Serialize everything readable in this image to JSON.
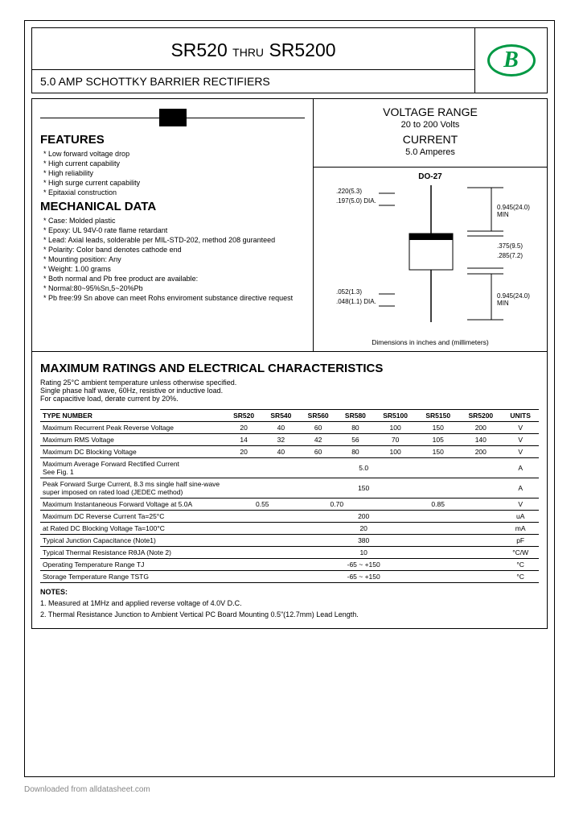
{
  "header": {
    "part_from": "SR520",
    "thru": "THRU",
    "part_to": "SR5200",
    "subtitle": "5.0 AMP SCHOTTKY BARRIER RECTIFIERS",
    "logo_letter": "B"
  },
  "voltage_current": {
    "vr_label": "VOLTAGE RANGE",
    "vr_value": "20 to 200 Volts",
    "cur_label": "CURRENT",
    "cur_value": "5.0 Amperes"
  },
  "features": {
    "heading": "FEATURES",
    "items": [
      "Low forward voltage drop",
      "High current capability",
      "High reliability",
      "High surge current capability",
      "Epitaxial construction"
    ]
  },
  "mechanical": {
    "heading": "MECHANICAL DATA",
    "items": [
      "Case: Molded plastic",
      "Epoxy: UL 94V-0 rate flame retardant",
      "Lead: Axial leads, solderable per MIL-STD-202, method 208 guranteed",
      "Polarity: Color band denotes cathode end",
      "Mounting position: Any",
      "Weight: 1.00 grams",
      "Both normal and Pb free product are available:",
      "Normal:80~95%Sn,5~20%Pb",
      "Pb free:99 Sn above can meet Rohs enviroment substance directive request"
    ]
  },
  "package": {
    "name": "DO-27",
    "dims": {
      "d1": ".220(5.3)",
      "d2": ".197(5.0) DIA.",
      "l1": "0.945(24.0) MIN",
      "b1": ".375(9.5)",
      "b2": ".285(7.2)",
      "w1": ".052(1.3)",
      "w2": ".048(1.1) DIA.",
      "l2": "0.945(24.0) MIN"
    },
    "caption": "Dimensions in inches and (millimeters)"
  },
  "ratings": {
    "heading": "MAXIMUM RATINGS AND ELECTRICAL CHARACTERISTICS",
    "note": "Rating 25°C ambient temperature unless otherwise specified.\nSingle phase half wave, 60Hz, resistive or inductive load.\nFor capacitive load, derate current by 20%.",
    "header_row": [
      "TYPE NUMBER",
      "SR520",
      "SR540",
      "SR560",
      "SR580",
      "SR5100",
      "SR5150",
      "SR5200",
      "UNITS"
    ],
    "rows": [
      {
        "label": "Maximum Recurrent Peak Reverse Voltage",
        "cells": [
          "20",
          "40",
          "60",
          "80",
          "100",
          "150",
          "200"
        ],
        "unit": "V"
      },
      {
        "label": "Maximum RMS Voltage",
        "cells": [
          "14",
          "32",
          "42",
          "56",
          "70",
          "105",
          "140"
        ],
        "unit": "V"
      },
      {
        "label": "Maximum DC Blocking Voltage",
        "cells": [
          "20",
          "40",
          "60",
          "80",
          "100",
          "150",
          "200"
        ],
        "unit": "V"
      },
      {
        "label": "Maximum Average Forward Rectified Current\nSee Fig. 1",
        "span": "5.0",
        "unit": "A"
      },
      {
        "label": "Peak Forward Surge Current, 8.3 ms single half sine-wave super imposed on rated load (JEDEC method)",
        "span": "150",
        "unit": "A"
      },
      {
        "label": "Maximum Instantaneous Forward Voltage at 5.0A",
        "groups": [
          {
            "span": 2,
            "val": "0.55"
          },
          {
            "span": 2,
            "val": "0.70"
          },
          {
            "span": 3,
            "val": "0.85"
          }
        ],
        "unit": "V"
      },
      {
        "label": "Maximum DC Reverse Current        Ta=25°C",
        "span": "200",
        "unit": "uA"
      },
      {
        "label": "at Rated DC Blocking Voltage        Ta=100°C",
        "span": "20",
        "unit": "mA"
      },
      {
        "label": "Typical Junction Capacitance (Note1)",
        "span": "380",
        "unit": "pF"
      },
      {
        "label": "Typical Thermal Resistance RθJA (Note 2)",
        "span": "10",
        "unit": "°C/W"
      },
      {
        "label": "Operating Temperature Range TJ",
        "span": "-65 ~ +150",
        "unit": "°C"
      },
      {
        "label": "Storage Temperature Range TSTG",
        "span": "-65 ~ +150",
        "unit": "°C"
      }
    ]
  },
  "notes": {
    "heading": "NOTES:",
    "items": [
      "1. Measured at 1MHz and applied reverse voltage of 4.0V D.C.",
      "2. Thermal Resistance Junction to Ambient Vertical PC Board Mounting 0.5\"(12.7mm) Lead Length."
    ]
  },
  "footer": "Downloaded from alldatasheet.com"
}
